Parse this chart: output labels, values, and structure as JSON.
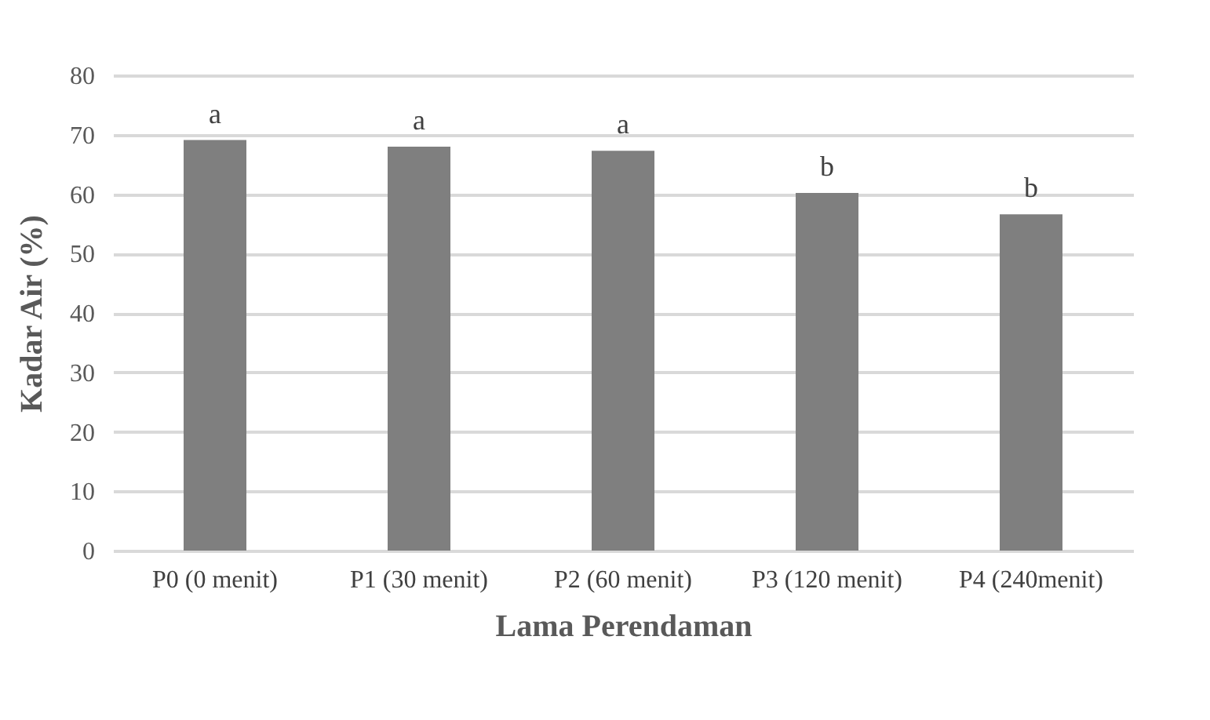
{
  "chart_data": {
    "type": "bar",
    "xlabel": "Lama Perendaman",
    "ylabel": "Kadar Air (%)",
    "categories": [
      "P0 (0 menit)",
      "P1 (30 menit)",
      "P2 (60 menit)",
      "P3 (120 menit)",
      "P4 (240menit)"
    ],
    "values": [
      69.1,
      68.0,
      67.3,
      60.2,
      56.6
    ],
    "value_labels": [
      "a",
      "a",
      "a",
      "b",
      "b"
    ],
    "color": "#7f7f7f",
    "ylim": [
      0,
      80
    ],
    "yticks": [
      0,
      10,
      20,
      30,
      40,
      50,
      60,
      70,
      80
    ],
    "grid": "y"
  }
}
